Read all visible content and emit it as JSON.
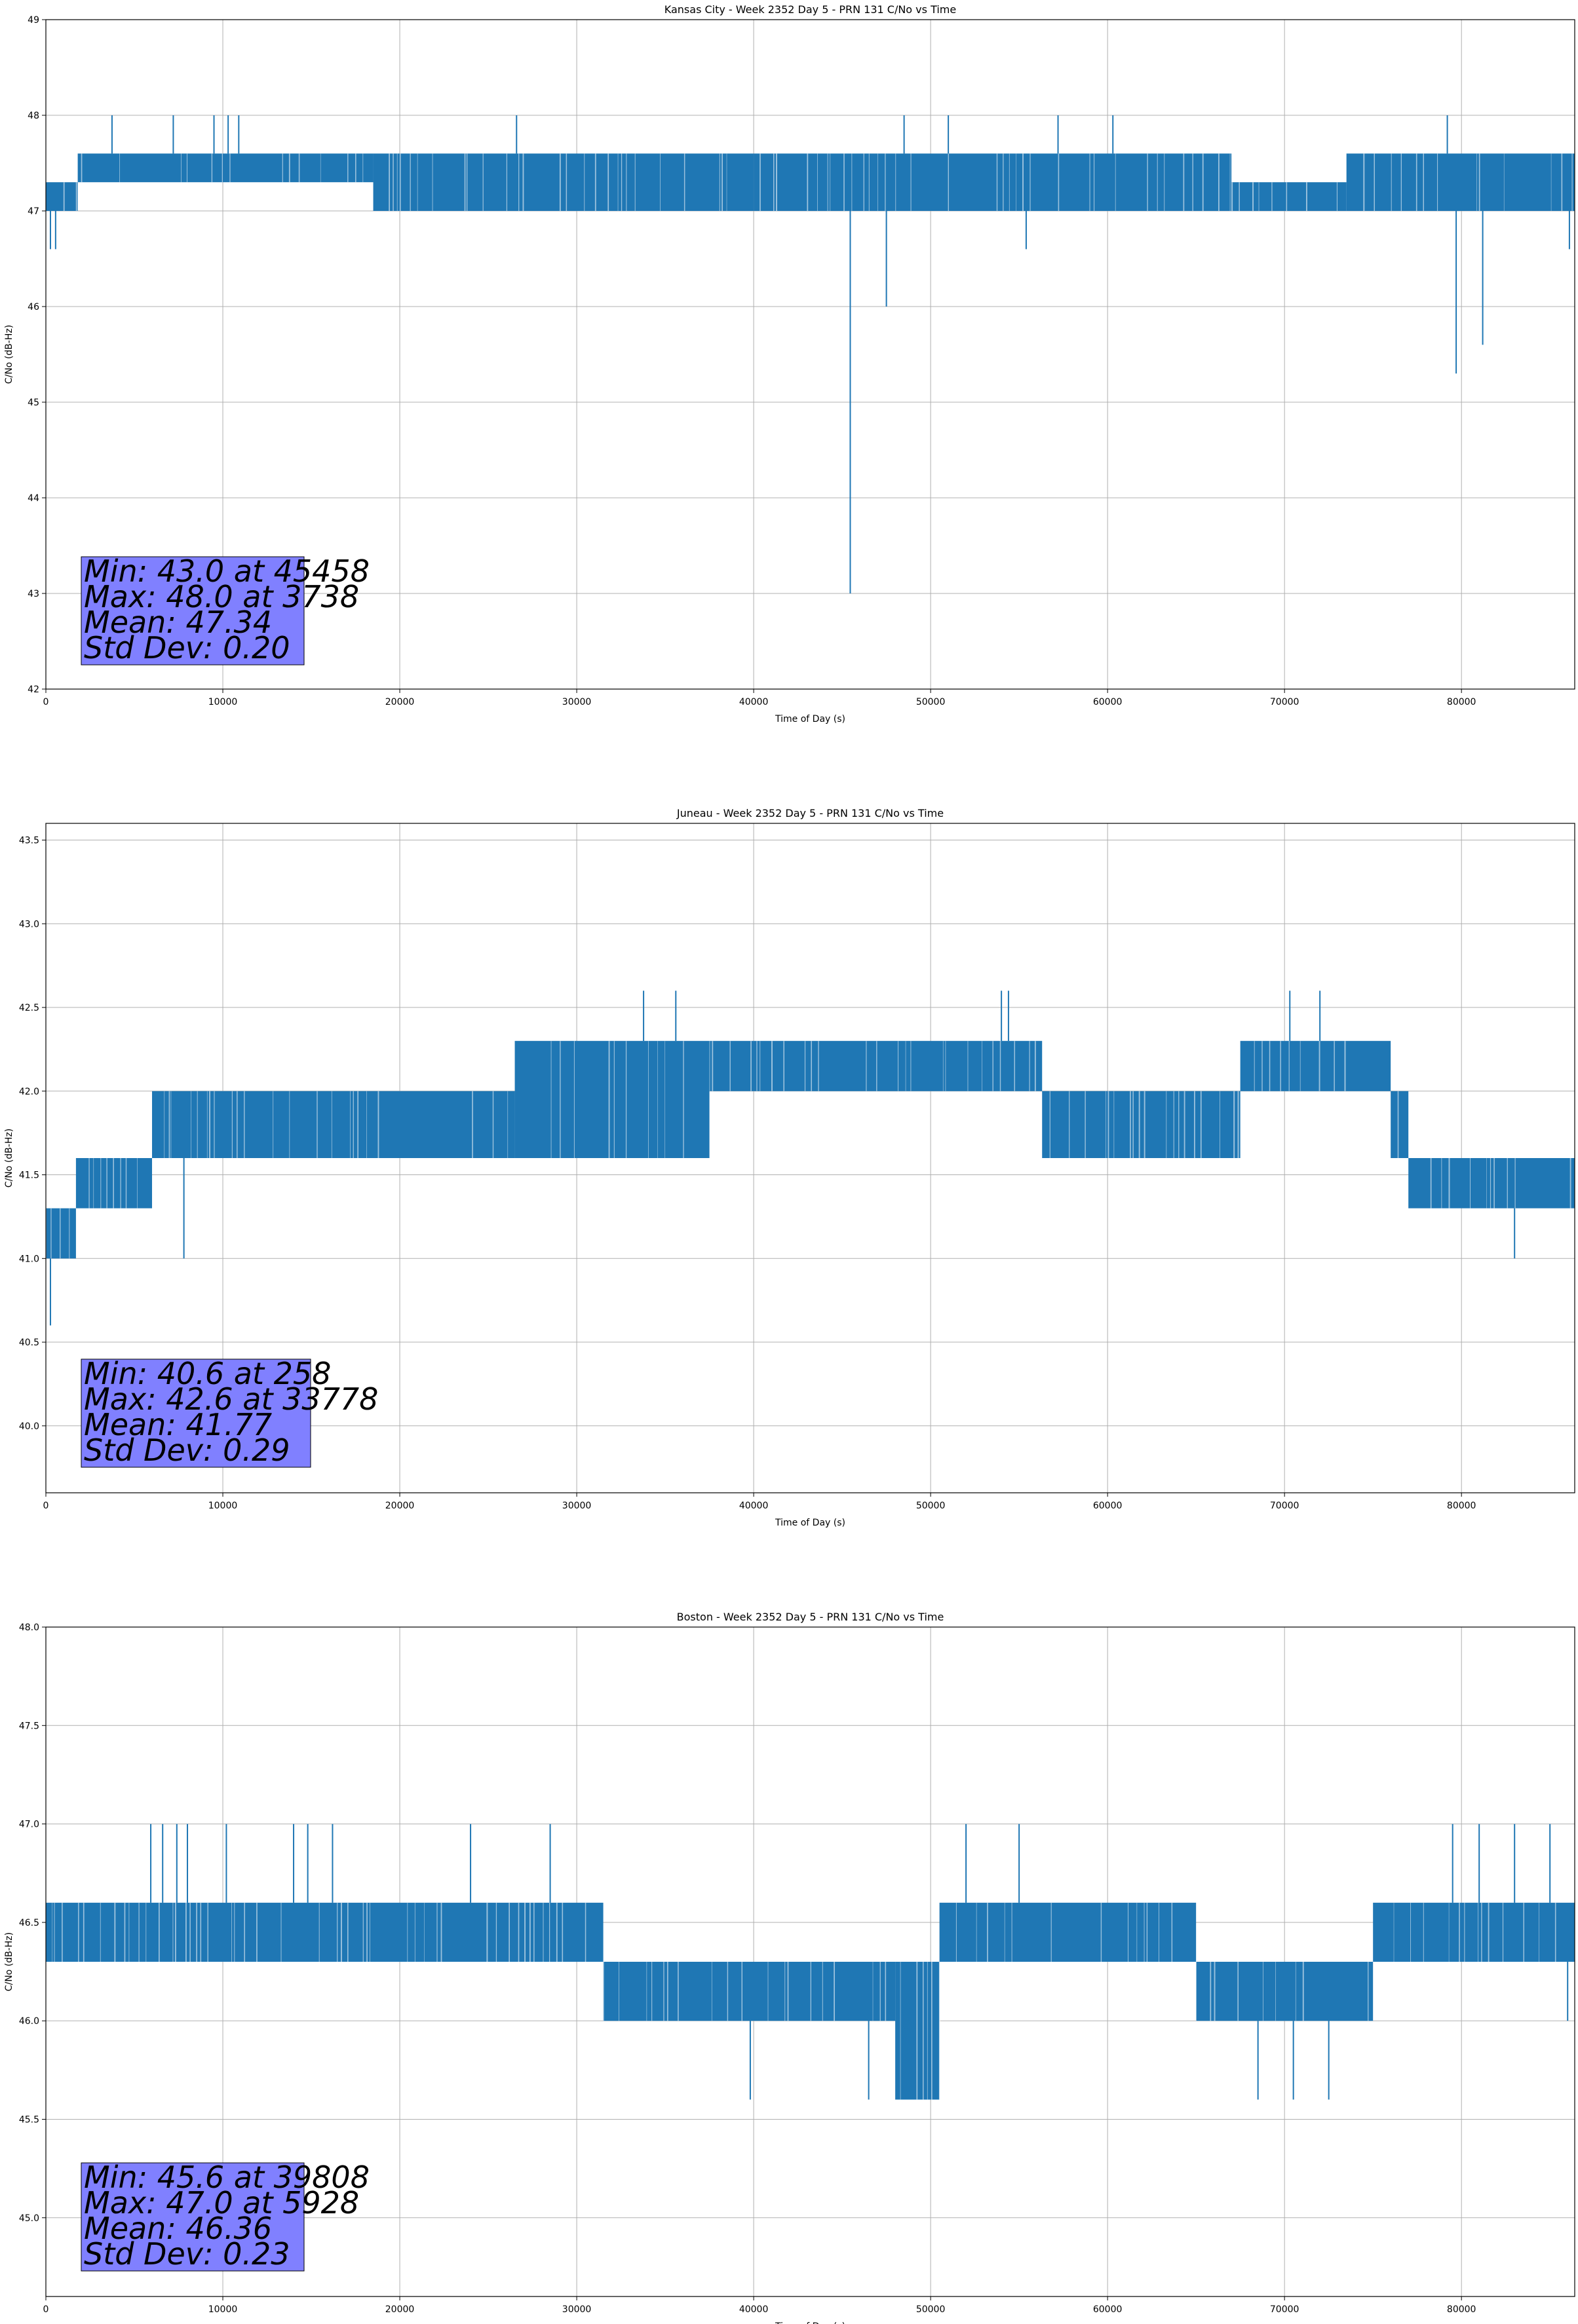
{
  "chart_data": [
    {
      "type": "line",
      "title": "Kansas City - Week 2352 Day 5 - PRN 131 C/No vs Time",
      "xlabel": "Time of Day (s)",
      "ylabel": "C/No (dB-Hz)",
      "xlim": [
        0,
        86400
      ],
      "ylim": [
        42,
        49
      ],
      "xticks": [
        "0",
        "10000",
        "20000",
        "30000",
        "40000",
        "50000",
        "60000",
        "70000",
        "80000"
      ],
      "yticks": [
        "42",
        "43",
        "44",
        "45",
        "46",
        "47",
        "48",
        "49"
      ],
      "grid": true,
      "series_color": "#1f77b4",
      "bands": [
        {
          "x": [
            0,
            1800
          ],
          "y": [
            47.0,
            47.3
          ]
        },
        {
          "x": [
            1800,
            18500
          ],
          "y": [
            47.3,
            47.6
          ]
        },
        {
          "x": [
            18500,
            40000
          ],
          "y": [
            47.0,
            47.6
          ]
        },
        {
          "x": [
            40000,
            67000
          ],
          "y": [
            47.0,
            47.6
          ]
        },
        {
          "x": [
            67000,
            73500
          ],
          "y": [
            47.0,
            47.3
          ]
        },
        {
          "x": [
            73500,
            86400
          ],
          "y": [
            47.0,
            47.6
          ]
        }
      ],
      "spikes": [
        {
          "x": 258,
          "y": 46.6
        },
        {
          "x": 550,
          "y": 46.6
        },
        {
          "x": 3738,
          "y": 48.0
        },
        {
          "x": 7200,
          "y": 48.0
        },
        {
          "x": 9500,
          "y": 48.0
        },
        {
          "x": 10300,
          "y": 48.0
        },
        {
          "x": 10900,
          "y": 48.0
        },
        {
          "x": 26600,
          "y": 48.0
        },
        {
          "x": 45458,
          "y": 43.0
        },
        {
          "x": 47500,
          "y": 46.0
        },
        {
          "x": 48500,
          "y": 48.0
        },
        {
          "x": 51000,
          "y": 48.0
        },
        {
          "x": 55400,
          "y": 46.6
        },
        {
          "x": 57200,
          "y": 48.0
        },
        {
          "x": 60300,
          "y": 48.0
        },
        {
          "x": 79700,
          "y": 45.3
        },
        {
          "x": 81200,
          "y": 45.6
        },
        {
          "x": 79200,
          "y": 48.0
        },
        {
          "x": 86100,
          "y": 46.6
        }
      ],
      "stats": [
        "Min: 43.0 at 45458",
        "Max: 48.0 at 3738",
        "Mean: 47.34",
        "Std Dev: 0.20"
      ]
    },
    {
      "type": "line",
      "title": "Juneau - Week 2352 Day 5 - PRN 131 C/No vs Time",
      "xlabel": "Time of Day (s)",
      "ylabel": "C/No (dB-Hz)",
      "xlim": [
        0,
        86400
      ],
      "ylim": [
        39.6,
        43.6
      ],
      "xticks": [
        "0",
        "10000",
        "20000",
        "30000",
        "40000",
        "50000",
        "60000",
        "70000",
        "80000"
      ],
      "yticks": [
        "40.0",
        "40.5",
        "41.0",
        "41.5",
        "42.0",
        "42.5",
        "43.0",
        "43.5"
      ],
      "grid": true,
      "series_color": "#1f77b4",
      "bands": [
        {
          "x": [
            0,
            1700
          ],
          "y": [
            41.0,
            41.3
          ]
        },
        {
          "x": [
            1700,
            6000
          ],
          "y": [
            41.3,
            41.6
          ]
        },
        {
          "x": [
            6000,
            26500
          ],
          "y": [
            41.6,
            42.0
          ]
        },
        {
          "x": [
            26500,
            37500
          ],
          "y": [
            41.6,
            42.3
          ]
        },
        {
          "x": [
            37500,
            53500
          ],
          "y": [
            42.0,
            42.3
          ]
        },
        {
          "x": [
            53500,
            56300
          ],
          "y": [
            42.0,
            42.3
          ]
        },
        {
          "x": [
            56300,
            67500
          ],
          "y": [
            41.6,
            42.0
          ]
        },
        {
          "x": [
            67500,
            76000
          ],
          "y": [
            42.0,
            42.3
          ]
        },
        {
          "x": [
            76000,
            77000
          ],
          "y": [
            41.6,
            42.0
          ]
        },
        {
          "x": [
            77000,
            86400
          ],
          "y": [
            41.3,
            41.6
          ]
        }
      ],
      "spikes": [
        {
          "x": 258,
          "y": 40.6
        },
        {
          "x": 33778,
          "y": 42.6
        },
        {
          "x": 35600,
          "y": 42.6
        },
        {
          "x": 54000,
          "y": 42.6
        },
        {
          "x": 54400,
          "y": 42.6
        },
        {
          "x": 70300,
          "y": 42.6
        },
        {
          "x": 72000,
          "y": 42.6
        },
        {
          "x": 7800,
          "y": 41.0
        },
        {
          "x": 83000,
          "y": 41.0
        }
      ],
      "stats": [
        "Min: 40.6 at 258",
        "Max: 42.6 at 33778",
        "Mean: 41.77",
        "Std Dev: 0.29"
      ]
    },
    {
      "type": "line",
      "title": "Boston - Week 2352 Day 5 - PRN 131 C/No vs Time",
      "xlabel": "Time of Day (s)",
      "ylabel": "C/No (dB-Hz)",
      "xlim": [
        0,
        86400
      ],
      "ylim": [
        44.6,
        48.0
      ],
      "xticks": [
        "0",
        "10000",
        "20000",
        "30000",
        "40000",
        "50000",
        "60000",
        "70000",
        "80000"
      ],
      "yticks": [
        "45.0",
        "45.5",
        "46.0",
        "46.5",
        "47.0",
        "47.5",
        "48.0"
      ],
      "grid": true,
      "series_color": "#1f77b4",
      "bands": [
        {
          "x": [
            0,
            31500
          ],
          "y": [
            46.3,
            46.6
          ]
        },
        {
          "x": [
            31500,
            48000
          ],
          "y": [
            46.0,
            46.3
          ]
        },
        {
          "x": [
            48000,
            50500
          ],
          "y": [
            45.6,
            46.3
          ]
        },
        {
          "x": [
            50500,
            65000
          ],
          "y": [
            46.3,
            46.6
          ]
        },
        {
          "x": [
            65000,
            75000
          ],
          "y": [
            46.0,
            46.3
          ]
        },
        {
          "x": [
            75000,
            86400
          ],
          "y": [
            46.3,
            46.6
          ]
        }
      ],
      "spikes": [
        {
          "x": 5928,
          "y": 47.0
        },
        {
          "x": 6600,
          "y": 47.0
        },
        {
          "x": 7400,
          "y": 47.0
        },
        {
          "x": 8000,
          "y": 47.0
        },
        {
          "x": 10200,
          "y": 47.0
        },
        {
          "x": 14000,
          "y": 47.0
        },
        {
          "x": 14800,
          "y": 47.0
        },
        {
          "x": 16200,
          "y": 47.0
        },
        {
          "x": 24000,
          "y": 47.0
        },
        {
          "x": 28500,
          "y": 47.0
        },
        {
          "x": 39808,
          "y": 45.6
        },
        {
          "x": 46500,
          "y": 45.6
        },
        {
          "x": 48500,
          "y": 45.6
        },
        {
          "x": 49500,
          "y": 45.6
        },
        {
          "x": 52000,
          "y": 47.0
        },
        {
          "x": 55000,
          "y": 47.0
        },
        {
          "x": 68500,
          "y": 45.6
        },
        {
          "x": 70500,
          "y": 45.6
        },
        {
          "x": 72500,
          "y": 45.6
        },
        {
          "x": 79500,
          "y": 47.0
        },
        {
          "x": 81000,
          "y": 47.0
        },
        {
          "x": 83000,
          "y": 47.0
        },
        {
          "x": 85000,
          "y": 47.0
        },
        {
          "x": 86000,
          "y": 46.0
        }
      ],
      "stats": [
        "Min: 45.6 at 39808",
        "Max: 47.0 at 5928",
        "Mean: 46.36",
        "Std Dev: 0.23"
      ]
    }
  ]
}
